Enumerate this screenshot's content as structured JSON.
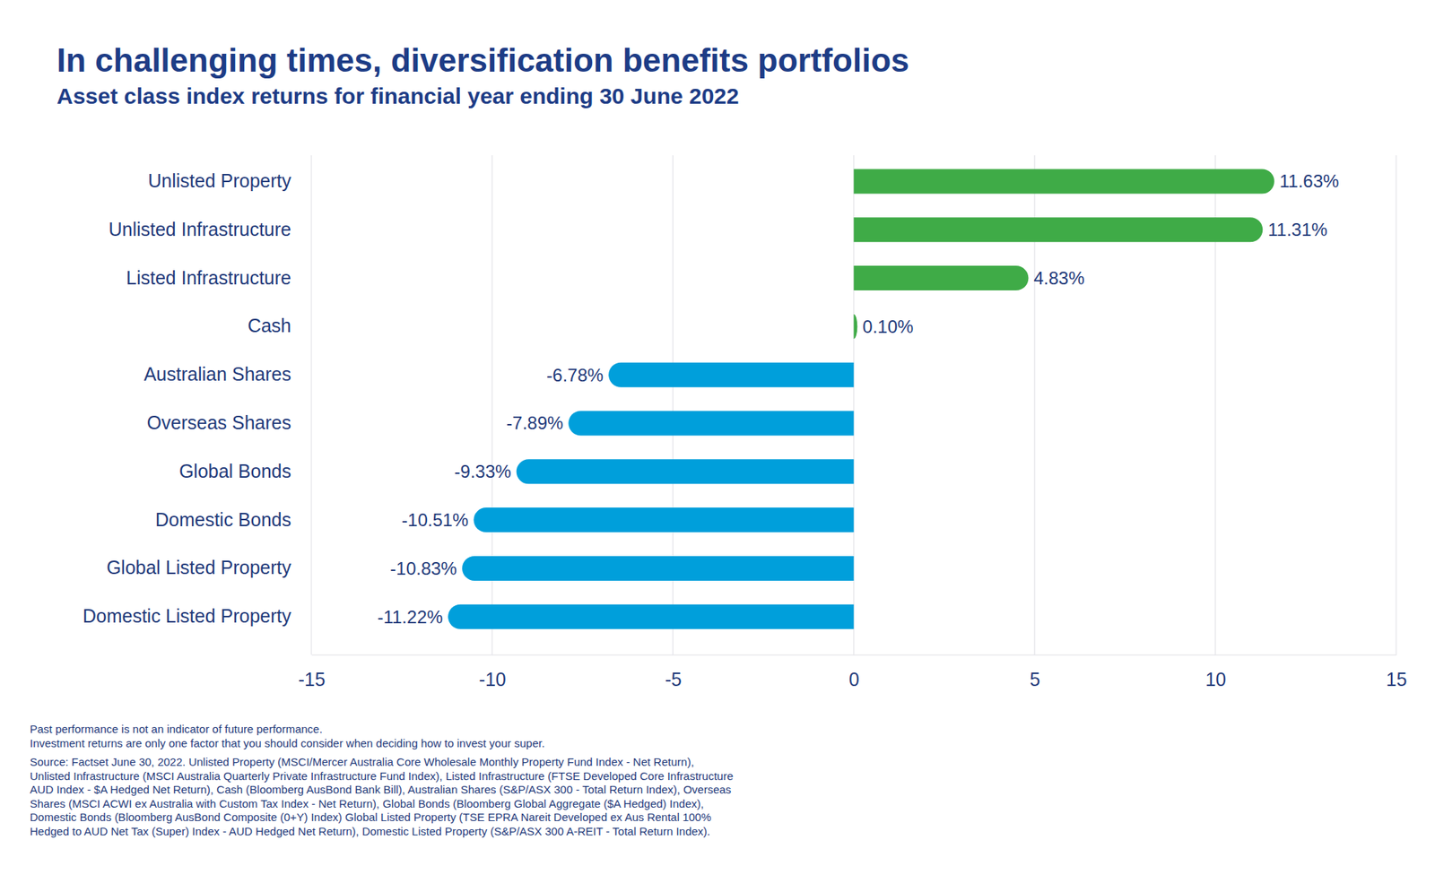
{
  "chart_data": {
    "type": "bar",
    "title": "In challenging times, diversification benefits portfolios",
    "subtitle": "Asset class index returns for financial year ending 30 June 2022",
    "orientation": "horizontal",
    "categories": [
      "Unlisted Property",
      "Unlisted Infrastructure",
      "Listed Infrastructure",
      "Cash",
      "Australian Shares",
      "Overseas Shares",
      "Global Bonds",
      "Domestic Bonds",
      "Global Listed Property",
      "Domestic Listed Property"
    ],
    "values": [
      11.63,
      11.31,
      4.83,
      0.1,
      -6.78,
      -7.89,
      -9.33,
      -10.51,
      -10.83,
      -11.22
    ],
    "value_labels": [
      "11.63%",
      "11.31%",
      "4.83%",
      "0.10%",
      "-6.78%",
      "-7.89%",
      "-9.33%",
      "-10.51%",
      "-10.83%",
      "-11.22%"
    ],
    "colors": [
      "#3fab47",
      "#3fab47",
      "#3fab47",
      "#3fab47",
      "#009fdb",
      "#009fdb",
      "#009fdb",
      "#009fdb",
      "#009fdb",
      "#009fdb"
    ],
    "data_labels": true,
    "grid": true,
    "xlim": [
      -15,
      15
    ],
    "xticks": [
      -15,
      -10,
      -5,
      0,
      5,
      10,
      15
    ],
    "annotations": [
      "Past performance is not an indicator of future performance.",
      "Investment returns are only one factor that you should consider when deciding how to invest your super.",
      "Source: Factset June 30, 2022. Unlisted Property (MSCI/Mercer Australia Core Wholesale Monthly Property Fund Index - Net Return),",
      "Unlisted Infrastructure (MSCI Australia Quarterly Private Infrastructure Fund Index), Listed Infrastructure (FTSE Developed Core Infrastructure",
      "AUD Index - $A Hedged Net Return), Cash (Bloomberg AusBond Bank Bill), Australian Shares (S&P/ASX 300 - Total Return Index), Overseas",
      "Shares (MSCI ACWI ex Australia with Custom Tax Index - Net Return), Global Bonds (Bloomberg Global Aggregate ($A Hedged) Index),",
      "Domestic Bonds (Bloomberg AusBond Composite (0+Y) Index) Global Listed Property (TSE EPRA Nareit Developed ex Aus Rental 100%",
      "Hedged to AUD Net Tax (Super) Index - AUD Hedged Net Return), Domestic Listed Property (S&P/ASX 300 A-REIT - Total Return Index)."
    ]
  }
}
